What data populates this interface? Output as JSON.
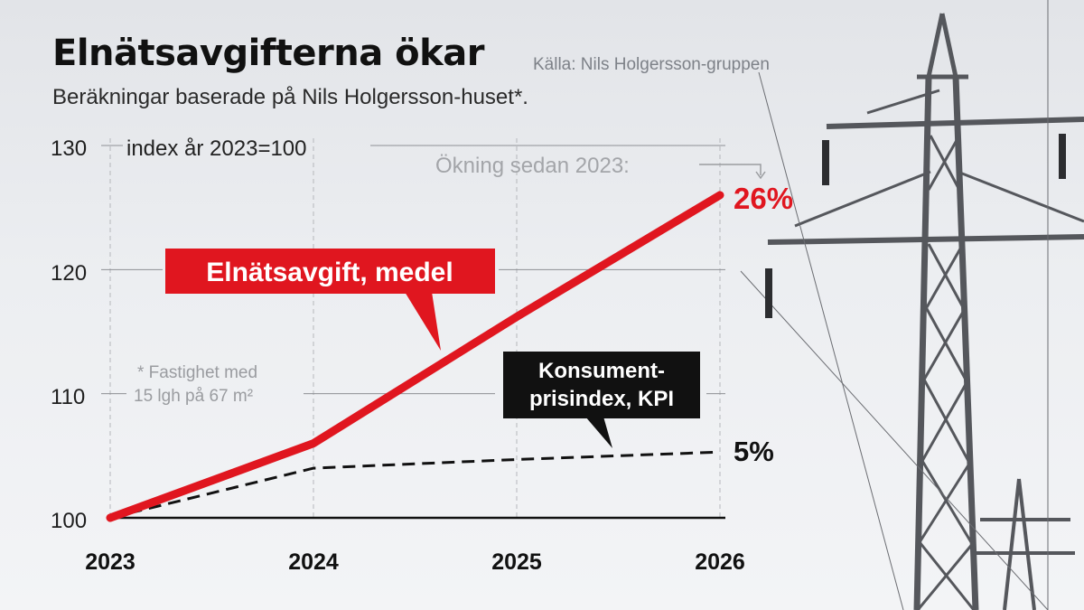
{
  "header": {
    "title": "Elnätsavgifterna ökar",
    "source": "Källa: Nils Holgersson-gruppen",
    "subtitle": "Beräkningar baserade på Nils Holgersson-huset*."
  },
  "annotations": {
    "unit": "index år 2023=100",
    "increase_since": "Ökning sedan 2023:",
    "footnote_line1": "* Fastighet med",
    "footnote_line2": "15 lgh på 67 m²",
    "red_label": "Elnätsavgift, medel",
    "black_label_line1": "Konsument-",
    "black_label_line2": "prisindex, KPI",
    "red_end": "26%",
    "black_end": "5%"
  },
  "colors": {
    "red": "#e0161f",
    "black": "#111111"
  },
  "chart_data": {
    "type": "line",
    "x": [
      "2023",
      "2024",
      "2025",
      "2026"
    ],
    "yticks": [
      "100",
      "110",
      "120",
      "130"
    ],
    "ylim": [
      100,
      130
    ],
    "grid": true,
    "series": [
      {
        "name": "Elnätsavgift, medel",
        "values": [
          100,
          106,
          116.2,
          126
        ],
        "color": "#e0161f",
        "style": "solid"
      },
      {
        "name": "Konsumentprisindex, KPI",
        "values": [
          100,
          104,
          104.7,
          105.3
        ],
        "color": "#111111",
        "style": "dashed"
      }
    ]
  }
}
